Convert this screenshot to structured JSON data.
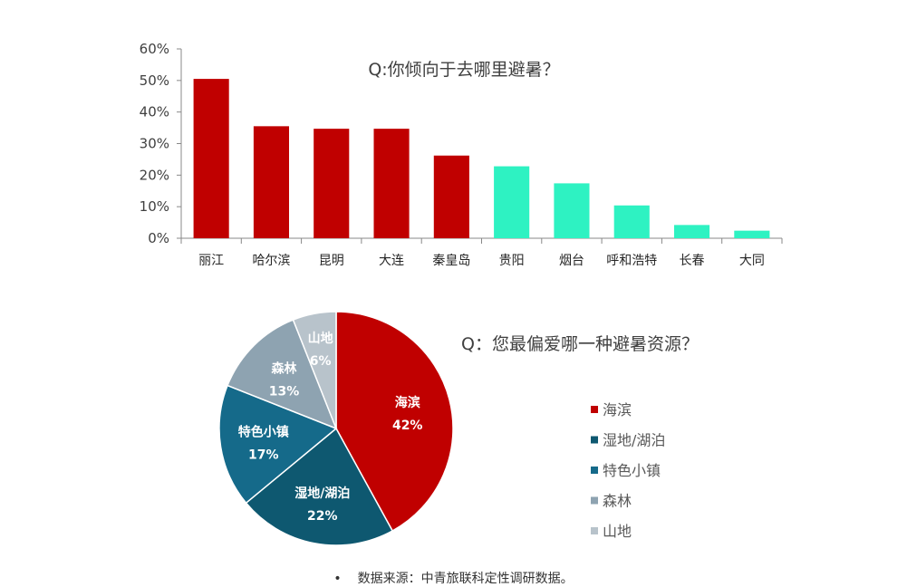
{
  "chart_data": [
    {
      "type": "bar",
      "title": "Q:你倾向于去哪里避暑？",
      "categories": [
        "丽江",
        "哈尔滨",
        "昆明",
        "大连",
        "秦皇岛",
        "贵阳",
        "烟台",
        "呼和浩特",
        "长春",
        "大同"
      ],
      "values": [
        50.5,
        35.5,
        34.7,
        34.7,
        26.2,
        22.8,
        17.4,
        10.4,
        4.2,
        2.4
      ],
      "colors": [
        "#c00000",
        "#c00000",
        "#c00000",
        "#c00000",
        "#c00000",
        "#2ef2c2",
        "#2ef2c2",
        "#2ef2c2",
        "#2ef2c2",
        "#2ef2c2"
      ],
      "yticks": [
        "0%",
        "10%",
        "20%",
        "30%",
        "40%",
        "50%",
        "60%"
      ],
      "ylim": [
        0,
        60
      ],
      "xlabel": "",
      "ylabel": "",
      "grid": false
    },
    {
      "type": "pie",
      "title": "Q：您最偏爱哪一种避暑资源？",
      "legend_position": "right",
      "slices": [
        {
          "label": "海滨",
          "value": 42,
          "value_label": "42%",
          "color": "#c00000"
        },
        {
          "label": "湿地/湖泊",
          "value": 22,
          "value_label": "22%",
          "color": "#0e5870"
        },
        {
          "label": "特色小镇",
          "value": 17,
          "value_label": "17%",
          "color": "#156a8a"
        },
        {
          "label": "森林",
          "value": 13,
          "value_label": "13%",
          "color": "#8ea3b1"
        },
        {
          "label": "山地",
          "value": 6,
          "value_label": "6%",
          "color": "#b8c3cb"
        }
      ],
      "legend": [
        "海滨",
        "湿地/湖泊",
        "特色小镇",
        "森林",
        "山地"
      ]
    }
  ],
  "footer": {
    "bullet": "•",
    "source": "数据来源：中青旅联科定性调研数据。"
  }
}
